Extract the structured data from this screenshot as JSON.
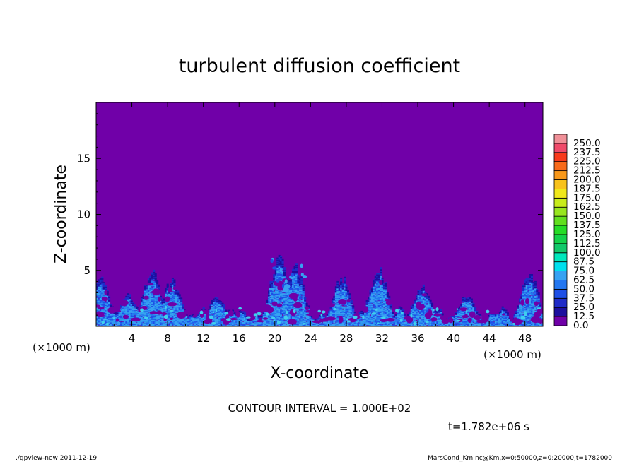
{
  "chart_data": {
    "type": "heatmap",
    "title": "turbulent diffusion coefficient",
    "xlabel": "X-coordinate",
    "ylabel": "Z-coordinate",
    "x_unit_left": "(×1000 m)",
    "x_unit_right": "(×1000 m)",
    "xlim": [
      0,
      50
    ],
    "ylim": [
      0,
      20
    ],
    "x_ticks": [
      4,
      8,
      12,
      16,
      20,
      24,
      28,
      32,
      36,
      40,
      44,
      48
    ],
    "y_ticks": [
      5,
      10,
      15
    ],
    "colorbar": {
      "min": 0.0,
      "max": 250.0,
      "step": 12.5,
      "labels": [
        "0.0",
        "12.5",
        "25.0",
        "37.5",
        "50.0",
        "62.5",
        "75.0",
        "87.5",
        "100.0",
        "112.5",
        "125.0",
        "137.5",
        "150.0",
        "162.5",
        "175.0",
        "187.5",
        "200.0",
        "212.5",
        "225.0",
        "237.5",
        "250.0"
      ],
      "colors": [
        "#7000a8",
        "#1c0f9e",
        "#1f2bc8",
        "#1e4fe6",
        "#2477f0",
        "#37a2f2",
        "#00e0ee",
        "#00e8bc",
        "#12c96a",
        "#14d24a",
        "#26dc26",
        "#62df1e",
        "#98e61e",
        "#c8ec1a",
        "#f0e81a",
        "#f8c21c",
        "#f8981a",
        "#f86a1a",
        "#f83a1c",
        "#f04a6a",
        "#f09098"
      ]
    },
    "background_value": "0.0",
    "contour_interval": "CONTOUR INTERVAL = 1.000E+02",
    "time_label": "t=1.782e+06 s",
    "plume_peaks_x": [
      0.5,
      3.5,
      6.2,
      8.5,
      13.5,
      20.5,
      22.3,
      27.5,
      31.6,
      36.5,
      41.5,
      48.5
    ],
    "plume_peaks_z": [
      4.2,
      2.8,
      4.9,
      4.1,
      2.6,
      6.1,
      5.1,
      4.3,
      5.1,
      3.6,
      2.7,
      4.7
    ]
  },
  "footer": {
    "left": "./gpview-new   2011-12-19",
    "right": "MarsCond_Km.nc@Km,x=0:50000,z=0:20000,t=1782000"
  }
}
